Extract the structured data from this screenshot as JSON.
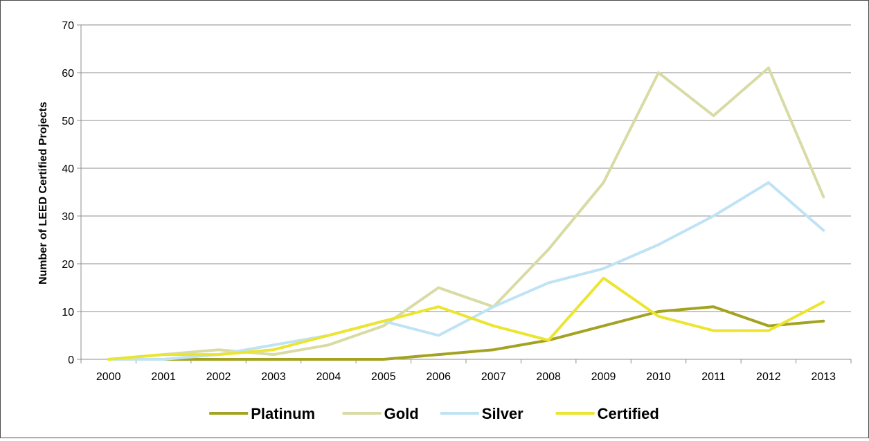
{
  "chart_data": {
    "type": "line",
    "title": "",
    "xlabel": "",
    "ylabel": "Number of LEED Certified Projects",
    "x": [
      "2000",
      "2001",
      "2002",
      "2003",
      "2004",
      "2005",
      "2006",
      "2007",
      "2008",
      "2009",
      "2010",
      "2011",
      "2012",
      "2013"
    ],
    "ylim": [
      0,
      70
    ],
    "yticks": [
      0,
      10,
      20,
      30,
      40,
      50,
      60,
      70
    ],
    "grid": true,
    "legend_position": "bottom",
    "series": [
      {
        "name": "Platinum",
        "color": "#a3a321",
        "values": [
          0,
          0,
          0,
          0,
          0,
          0,
          1,
          2,
          4,
          7,
          10,
          11,
          7,
          8
        ]
      },
      {
        "name": "Gold",
        "color": "#d9dba5",
        "values": [
          0,
          1,
          2,
          1,
          3,
          7,
          15,
          11,
          23,
          37,
          60,
          51,
          61,
          34
        ]
      },
      {
        "name": "Silver",
        "color": "#bfe3f4",
        "values": [
          0,
          0,
          1,
          3,
          5,
          8,
          5,
          11,
          16,
          19,
          24,
          30,
          37,
          27
        ]
      },
      {
        "name": "Certified",
        "color": "#ece530",
        "values": [
          0,
          1,
          1,
          2,
          5,
          8,
          11,
          7,
          4,
          17,
          9,
          6,
          6,
          12
        ]
      }
    ]
  }
}
